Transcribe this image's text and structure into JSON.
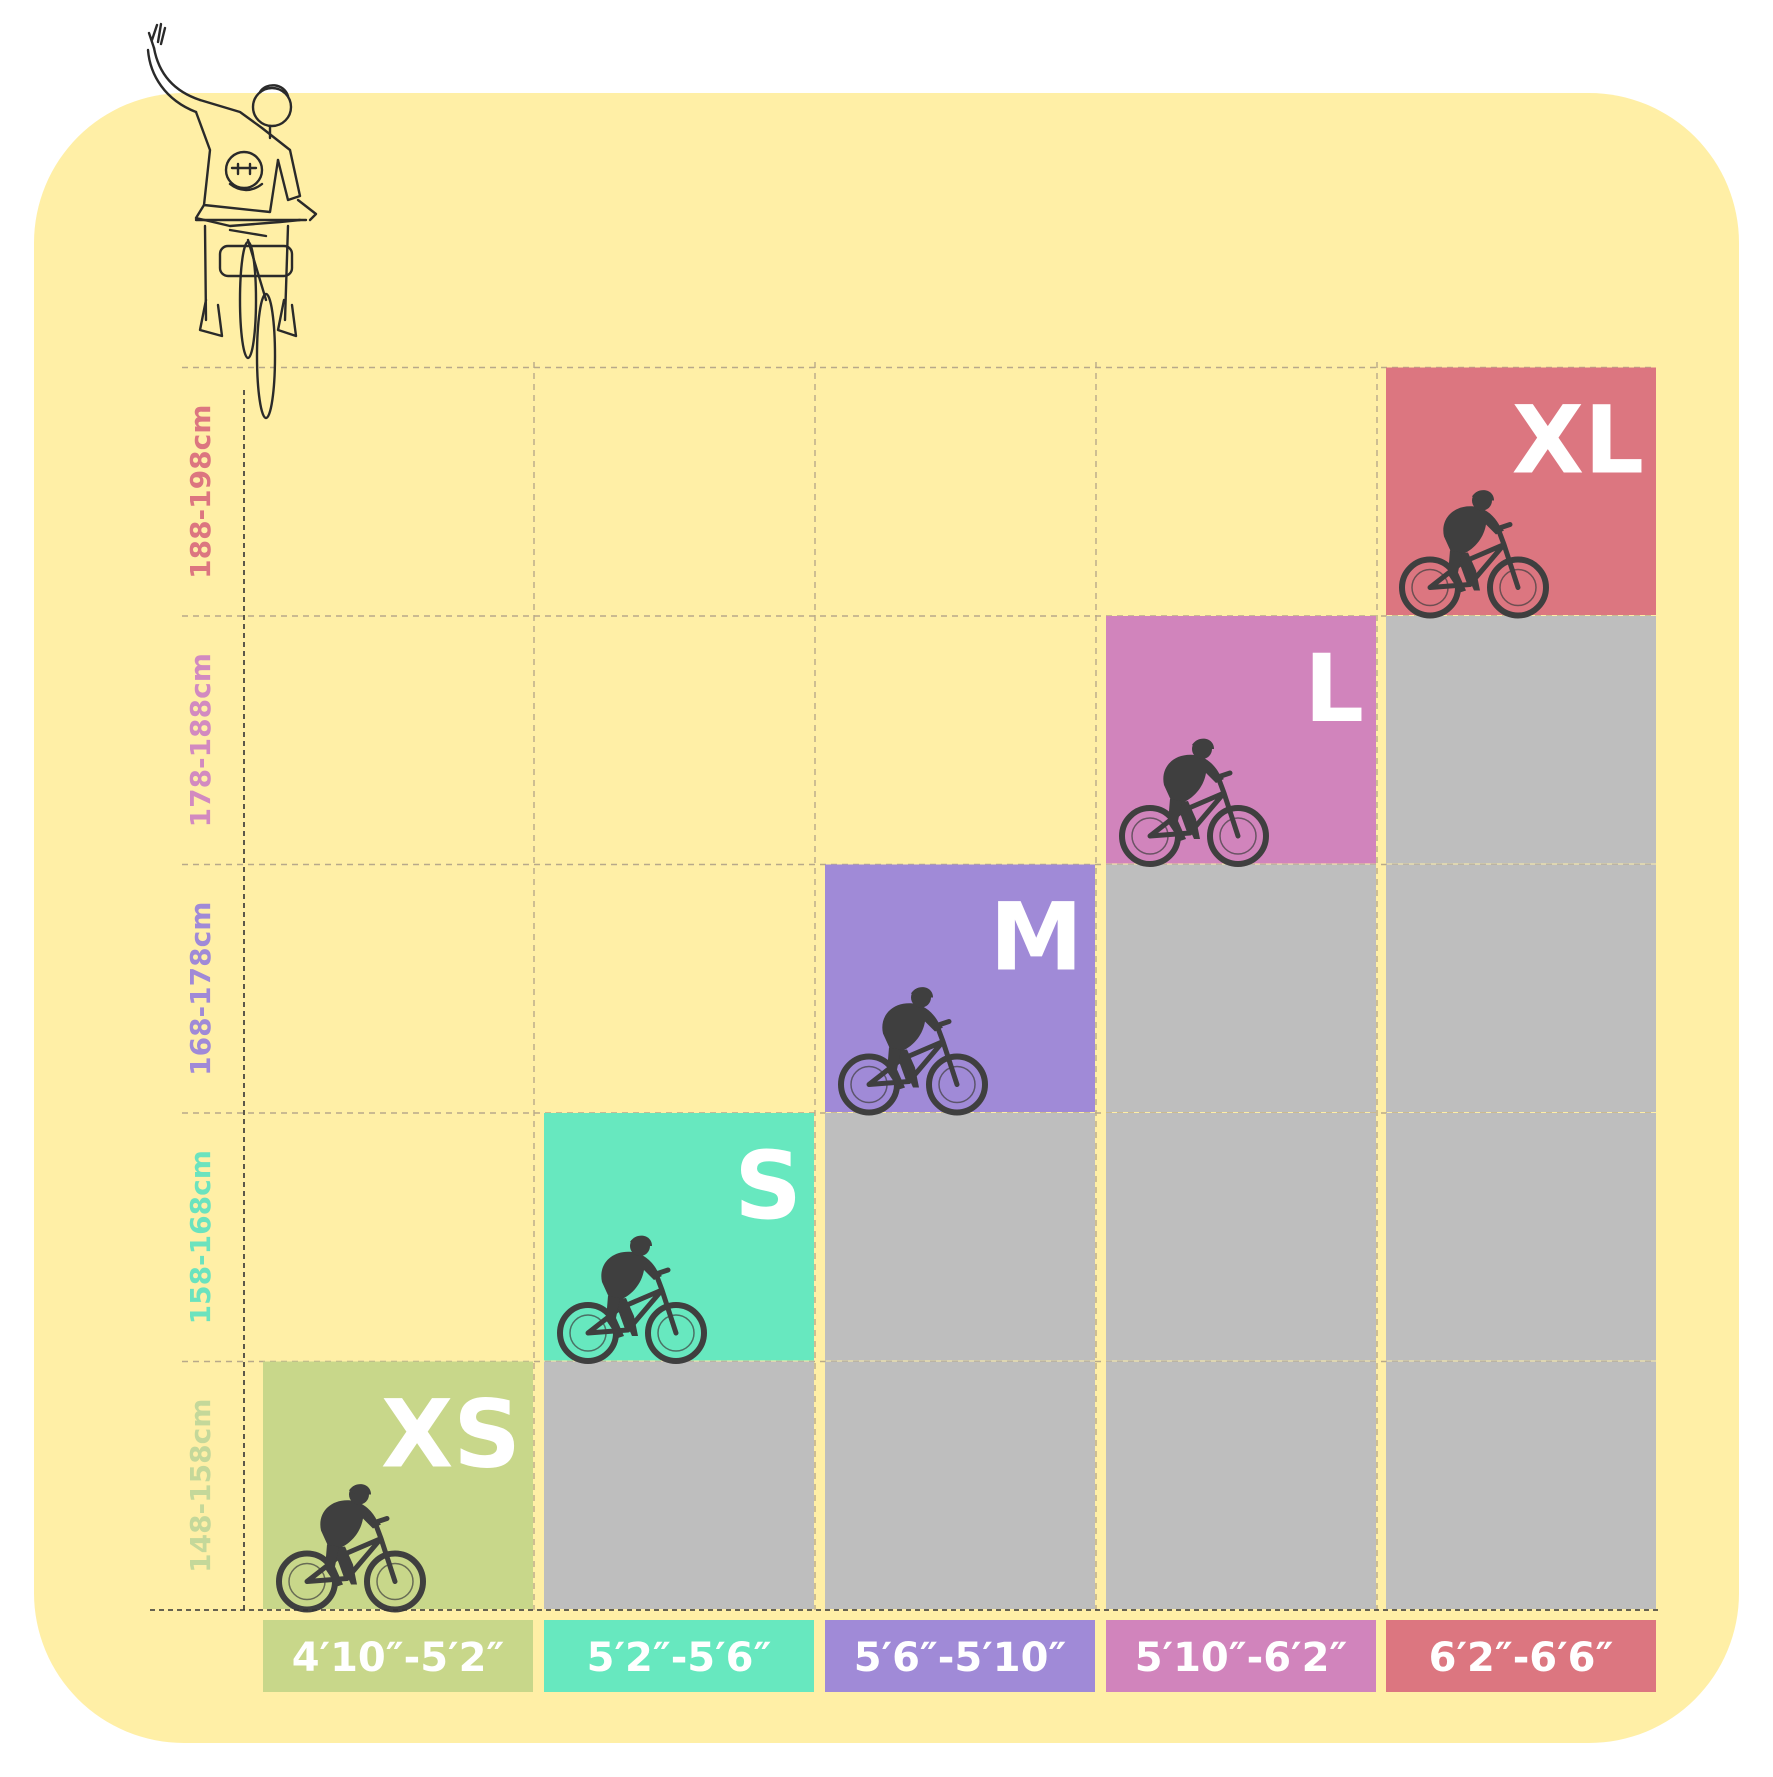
{
  "chart_data": {
    "type": "bar",
    "title": "",
    "xlabel": "",
    "ylabel": "",
    "categories": [
      "4′10″-5′2″",
      "5′2″-5′6″",
      "5′6″-5′10″",
      "5′10″-6′2″",
      "6′2″-6′6″"
    ],
    "sizes": [
      "XS",
      "S",
      "M",
      "L",
      "XL"
    ],
    "values": [
      1,
      2,
      3,
      4,
      5
    ],
    "height_ranges_cm": [
      "148-158cm",
      "158-168cm",
      "168-178cm",
      "178-188cm",
      "188-198cm"
    ],
    "ylim": [
      0,
      5
    ],
    "grid": true,
    "colors": {
      "background": "#FFEFA6",
      "filler": "#BEBEBE",
      "grid": "#B8A98A",
      "silhouette": "#3F3F3F",
      "sizes": [
        "#C8D78A",
        "#67E8BF",
        "#A08AD7",
        "#D184BC",
        "#DC7680"
      ],
      "cm_labels": [
        "#C4D89A",
        "#6BE3BE",
        "#A08AD7",
        "#D28AC0",
        "#DC7680"
      ]
    },
    "icons": [
      "waving-cyclist-icon",
      "cyclist-silhouette-icon"
    ]
  }
}
